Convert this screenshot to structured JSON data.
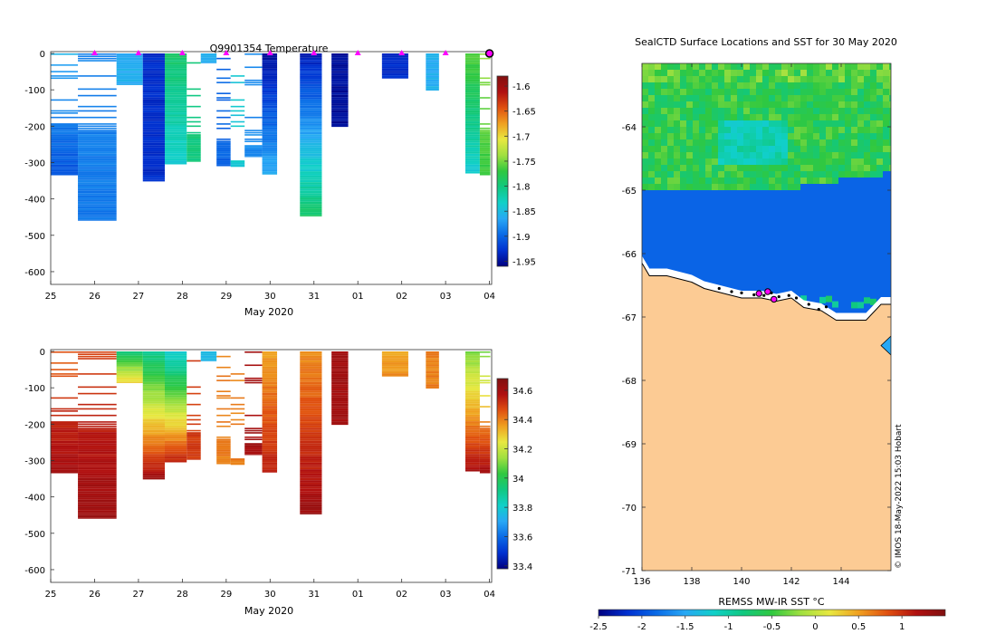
{
  "chart_data": [
    {
      "type": "heatmap",
      "title": "Q9901354  Temperature",
      "xlabel": "May 2020",
      "ylabel": "",
      "x_tick_labels": [
        "25",
        "26",
        "27",
        "28",
        "29",
        "30",
        "31",
        "01",
        "02",
        "03",
        "04"
      ],
      "x_range_days": [
        0,
        10.05
      ],
      "ylim": [
        -635,
        5
      ],
      "y_ticks": [
        0,
        -100,
        -200,
        -300,
        -400,
        -500,
        -600
      ],
      "colorbar": {
        "min": -1.96,
        "max": -1.58,
        "ticks": [
          -1.6,
          -1.65,
          -1.7,
          -1.75,
          -1.8,
          -1.85,
          -1.9,
          -1.95
        ],
        "colors": [
          "#000080",
          "#0030d0",
          "#0a6ae6",
          "#28a8f5",
          "#10d0c8",
          "#10c880",
          "#30c840",
          "#a0e040",
          "#e8e840",
          "#f0a020",
          "#e05010",
          "#b01010",
          "#801010"
        ]
      },
      "surface_markers_day": [
        1,
        2,
        3,
        4,
        5,
        6,
        7,
        8,
        9
      ],
      "current_position_day": 10.0,
      "profiles": [
        {
          "t0": 0.0,
          "t1": 0.62,
          "depth": 335,
          "top": -1.86,
          "bot": -1.91,
          "hmin": 190
        },
        {
          "t0": 0.62,
          "t1": 1.5,
          "depth": 460,
          "top": -1.88,
          "bot": -1.89,
          "hmin": 210
        },
        {
          "t0": 1.5,
          "t1": 2.1,
          "depth": 85,
          "top": -1.86,
          "bot": -1.86
        },
        {
          "t0": 2.1,
          "t1": 2.6,
          "depth": 352,
          "top": -1.93,
          "bot": -1.93
        },
        {
          "t0": 2.6,
          "t1": 3.1,
          "depth": 305,
          "top": -1.79,
          "bot": -1.84
        },
        {
          "t0": 3.1,
          "t1": 3.42,
          "depth": 298,
          "top": -1.8,
          "bot": -1.8,
          "hmin": 220
        },
        {
          "t0": 3.42,
          "t1": 3.78,
          "depth": 25,
          "top": -1.86,
          "bot": -1.86
        },
        {
          "t0": 3.78,
          "t1": 4.1,
          "depth": 310,
          "top": -1.9,
          "bot": -1.9,
          "hmin": 235
        },
        {
          "t0": 4.1,
          "t1": 4.42,
          "depth": 312,
          "top": -1.84,
          "bot": -1.84,
          "hmin": 290
        },
        {
          "t0": 4.42,
          "t1": 4.82,
          "depth": 285,
          "top": -1.88,
          "bot": -1.88,
          "hmin": 248
        },
        {
          "t0": 4.82,
          "t1": 5.16,
          "depth": 332,
          "top": -1.95,
          "bot": -1.86
        },
        {
          "t0": 5.68,
          "t1": 6.18,
          "depth": 448,
          "top": -1.94,
          "bot": -1.79
        },
        {
          "t0": 6.4,
          "t1": 6.78,
          "depth": 202,
          "top": -1.95,
          "bot": -1.95
        },
        {
          "t0": 7.55,
          "t1": 8.15,
          "depth": 68,
          "top": -1.93,
          "bot": -1.93
        },
        {
          "t0": 8.55,
          "t1": 8.85,
          "depth": 102,
          "top": -1.86,
          "bot": -1.86
        },
        {
          "t0": 9.45,
          "t1": 9.78,
          "depth": 330,
          "top": -1.76,
          "bot": -1.84
        },
        {
          "t0": 9.78,
          "t1": 10.02,
          "depth": 335,
          "top": -1.74,
          "bot": -1.77,
          "hmin": 205
        }
      ]
    },
    {
      "type": "heatmap",
      "title": "",
      "xlabel": "May 2020",
      "ylabel": "",
      "x_tick_labels": [
        "25",
        "26",
        "27",
        "28",
        "29",
        "30",
        "31",
        "01",
        "02",
        "03",
        "04"
      ],
      "x_range_days": [
        0,
        10.05
      ],
      "ylim": [
        -635,
        5
      ],
      "y_ticks": [
        0,
        -100,
        -200,
        -300,
        -400,
        -500,
        -600
      ],
      "colorbar": {
        "min": 33.38,
        "max": 34.68,
        "ticks": [
          34.6,
          34.4,
          34.2,
          34,
          33.8,
          33.6,
          33.4
        ],
        "colors": [
          "#000080",
          "#0030d0",
          "#0a6ae6",
          "#28a8f5",
          "#10d0c8",
          "#10c880",
          "#30c840",
          "#a0e040",
          "#e8e840",
          "#f0a020",
          "#e05010",
          "#b01010",
          "#801010"
        ]
      },
      "profiles": [
        {
          "t0": 0.0,
          "t1": 0.62,
          "depth": 335,
          "top": 34.45,
          "bot": 34.6,
          "hmin": 190
        },
        {
          "t0": 0.62,
          "t1": 1.5,
          "depth": 460,
          "top": 34.5,
          "bot": 34.62,
          "hmin": 210
        },
        {
          "t0": 1.5,
          "t1": 2.1,
          "depth": 85,
          "top": 33.95,
          "bot": 34.3
        },
        {
          "t0": 2.1,
          "t1": 2.6,
          "depth": 352,
          "top": 33.9,
          "bot": 34.62
        },
        {
          "t0": 2.6,
          "t1": 3.1,
          "depth": 305,
          "top": 33.8,
          "bot": 34.55
        },
        {
          "t0": 3.1,
          "t1": 3.42,
          "depth": 298,
          "top": 34.5,
          "bot": 34.5,
          "hmin": 220
        },
        {
          "t0": 3.42,
          "t1": 3.78,
          "depth": 25,
          "top": 33.75,
          "bot": 33.75
        },
        {
          "t0": 3.78,
          "t1": 4.1,
          "depth": 310,
          "top": 34.4,
          "bot": 34.4,
          "hmin": 235
        },
        {
          "t0": 4.1,
          "t1": 4.42,
          "depth": 312,
          "top": 34.4,
          "bot": 34.4,
          "hmin": 290
        },
        {
          "t0": 4.42,
          "t1": 4.82,
          "depth": 285,
          "top": 34.6,
          "bot": 34.6,
          "hmin": 248
        },
        {
          "t0": 4.82,
          "t1": 5.16,
          "depth": 332,
          "top": 34.35,
          "bot": 34.55
        },
        {
          "t0": 5.68,
          "t1": 6.18,
          "depth": 448,
          "top": 34.38,
          "bot": 34.62
        },
        {
          "t0": 6.4,
          "t1": 6.78,
          "depth": 202,
          "top": 34.6,
          "bot": 34.6
        },
        {
          "t0": 7.55,
          "t1": 8.15,
          "depth": 68,
          "top": 34.35,
          "bot": 34.38
        },
        {
          "t0": 8.55,
          "t1": 8.85,
          "depth": 102,
          "top": 34.4,
          "bot": 34.4
        },
        {
          "t0": 9.45,
          "t1": 9.78,
          "depth": 330,
          "top": 34.1,
          "bot": 34.6
        },
        {
          "t0": 9.78,
          "t1": 10.02,
          "depth": 335,
          "top": 34.1,
          "bot": 34.6,
          "hmin": 205
        }
      ]
    },
    {
      "type": "heatmap",
      "title": "SealCTD Surface Locations and SST for 30 May 2020",
      "xlabel": "",
      "ylabel": "",
      "xlim": [
        136,
        146
      ],
      "ylim": [
        -71,
        -63
      ],
      "x_ticks": [
        136,
        138,
        140,
        142,
        144
      ],
      "y_ticks": [
        -64,
        -65,
        -66,
        -67,
        -68,
        -69,
        -70,
        -71
      ],
      "colorbar": {
        "label": "REMSS MW-IR SST °C",
        "min": -2.5,
        "max": 1.5,
        "ticks": [
          -2.5,
          -2,
          -1.5,
          -1,
          -0.5,
          0,
          0.5,
          1
        ],
        "colors": [
          "#000080",
          "#0030d0",
          "#0a6ae6",
          "#28a8f5",
          "#10d0c8",
          "#10c880",
          "#30c840",
          "#a0e040",
          "#e8e840",
          "#f0a020",
          "#e05010",
          "#b01010",
          "#801010"
        ]
      },
      "land_color": "#fccb94",
      "ocean_open_color": "#0a64e6",
      "coast_polyline": [
        [
          136,
          -66.15
        ],
        [
          136.3,
          -66.35
        ],
        [
          137,
          -66.35
        ],
        [
          137.5,
          -66.4
        ],
        [
          138,
          -66.45
        ],
        [
          138.5,
          -66.55
        ],
        [
          139,
          -66.6
        ],
        [
          139.5,
          -66.65
        ],
        [
          140,
          -66.7
        ],
        [
          140.8,
          -66.7
        ],
        [
          141.4,
          -66.75
        ],
        [
          142,
          -66.7
        ],
        [
          142.5,
          -66.85
        ],
        [
          143.2,
          -66.9
        ],
        [
          143.8,
          -67.05
        ],
        [
          144.4,
          -67.05
        ],
        [
          145,
          -67.05
        ],
        [
          145.6,
          -66.8
        ],
        [
          146,
          -66.8
        ]
      ],
      "float_track": [
        [
          139.1,
          -66.55
        ],
        [
          139.6,
          -66.6
        ],
        [
          140,
          -66.62
        ],
        [
          140.5,
          -66.65
        ],
        [
          140.9,
          -66.66
        ],
        [
          141.2,
          -66.62
        ],
        [
          141.5,
          -66.68
        ],
        [
          141.9,
          -66.66
        ],
        [
          142.2,
          -66.7
        ],
        [
          142.7,
          -66.8
        ],
        [
          143.1,
          -66.88
        ],
        [
          143.4,
          -66.84
        ]
      ],
      "latest_positions": [
        [
          140.7,
          -66.63
        ],
        [
          141.05,
          -66.6
        ],
        [
          141.3,
          -66.72
        ]
      ],
      "credit": "© IMOS 18-May-2022 15:03 Hobart"
    }
  ]
}
